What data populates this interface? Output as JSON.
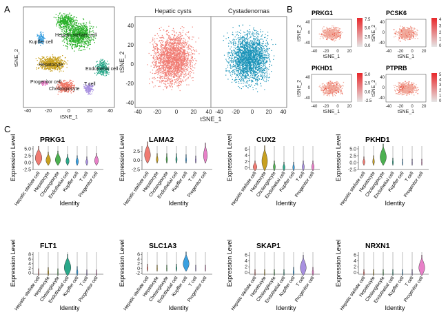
{
  "panels": {
    "a": "A",
    "b": "B",
    "c": "C"
  },
  "tsne_axes": {
    "xlabel": "tSNE_1",
    "ylabel": "tSNE_2",
    "ticks_main": [
      "-40",
      "-20",
      "0",
      "20",
      "40"
    ],
    "ticks_small": [
      "-40",
      "-20",
      "0",
      "20",
      "40"
    ]
  },
  "panel_a": {
    "clusters": [
      {
        "label": "Hepatic stellate cell",
        "color": "#2bb12b"
      },
      {
        "label": "Kupffer cell",
        "color": "#3aa0e0"
      },
      {
        "label": "Hepatocyte",
        "color": "#c8a020"
      },
      {
        "label": "Endothelial cell",
        "color": "#2aa88a"
      },
      {
        "label": "Progenitor cell",
        "color": "#e880c8"
      },
      {
        "label": "Cholangiocyte",
        "color": "#f07868"
      },
      {
        "label": "T cell",
        "color": "#a890e0"
      }
    ],
    "split_titles": [
      "Hepatic cysts",
      "Cystadenomas"
    ],
    "split_colors": [
      "#f07b72",
      "#1a93b8"
    ]
  },
  "panel_b": {
    "genes": [
      {
        "name": "PRKG1",
        "scale": [
          "7.5",
          "5.0",
          "2.5",
          "0.0"
        ]
      },
      {
        "name": "PCSK6",
        "scale": [
          "4",
          "3",
          "2",
          "1",
          "0"
        ]
      },
      {
        "name": "PKHD1",
        "scale": [
          "5.0",
          "2.5",
          "0.0",
          "-2.5"
        ]
      },
      {
        "name": "PTPRB",
        "scale": [
          "5",
          "4",
          "3",
          "2",
          "1",
          "0"
        ]
      }
    ]
  },
  "panel_c": {
    "ylabel": "Expression Level",
    "xlabel": "Identity",
    "categories": [
      "Hepatic stellate cell",
      "Hepatocyte",
      "Cholangiocyte",
      "Endothelial cell",
      "Kupffer cell",
      "T cell",
      "Progenitor cell"
    ],
    "colors": [
      "#f07b72",
      "#c8a020",
      "#4cb050",
      "#2aa88a",
      "#3aa0e0",
      "#a890e0",
      "#e880c8"
    ],
    "genes": [
      {
        "name": "PRKG1",
        "ticks": [
          "5.0",
          "2.5",
          "0.0",
          "-2.5"
        ],
        "ylim": [
          -2.5,
          6
        ],
        "widths": [
          0.95,
          0.65,
          0.75,
          0.45,
          0.35,
          0.3,
          0.55
        ],
        "heights": [
          0.7,
          0.45,
          0.5,
          0.35,
          0.3,
          0.25,
          0.4
        ]
      },
      {
        "name": "LAMA2",
        "ticks": [
          "2.5",
          "0.0",
          "-2.5"
        ],
        "ylim": [
          -2.5,
          4
        ],
        "widths": [
          0.85,
          0.25,
          0.2,
          0.2,
          0.15,
          0.15,
          0.55
        ],
        "heights": [
          0.8,
          0.3,
          0.3,
          0.3,
          0.25,
          0.2,
          0.75
        ]
      },
      {
        "name": "CUX2",
        "ticks": [
          "6",
          "4",
          "2",
          "0"
        ],
        "ylim": [
          -0.5,
          7
        ],
        "widths": [
          0.55,
          0.8,
          0.3,
          0.3,
          0.25,
          0.3,
          0.35
        ],
        "heights": [
          0.3,
          0.95,
          0.3,
          0.25,
          0.25,
          0.3,
          0.3
        ]
      },
      {
        "name": "PKHD1",
        "ticks": [
          "5.0",
          "2.5",
          "0.0",
          "-2.5"
        ],
        "ylim": [
          -2.5,
          6
        ],
        "widths": [
          0.3,
          0.25,
          0.9,
          0.15,
          0.1,
          0.1,
          0.1
        ],
        "heights": [
          0.25,
          0.3,
          0.8,
          0.2,
          0.15,
          0.15,
          0.15
        ]
      },
      {
        "name": "FLT1",
        "ticks": [
          "8",
          "6",
          "4",
          "2",
          "0"
        ],
        "ylim": [
          -0.5,
          9
        ],
        "widths": [
          0.1,
          0.15,
          0.1,
          0.95,
          0.2,
          0.1,
          0.1
        ],
        "heights": [
          0.2,
          0.25,
          0.2,
          0.85,
          0.3,
          0.15,
          0.15
        ]
      },
      {
        "name": "SLC1A3",
        "ticks": [
          "6",
          "4",
          "2",
          "0",
          "-2"
        ],
        "ylim": [
          -2.5,
          7
        ],
        "widths": [
          0.15,
          0.1,
          0.1,
          0.15,
          0.85,
          0.1,
          0.1
        ],
        "heights": [
          0.2,
          0.15,
          0.15,
          0.2,
          0.75,
          0.15,
          0.15
        ]
      },
      {
        "name": "SKAP1",
        "ticks": [
          "6",
          "4",
          "2",
          "0"
        ],
        "ylim": [
          -0.5,
          7
        ],
        "widths": [
          0.1,
          0.1,
          0.1,
          0.1,
          0.15,
          0.85,
          0.2
        ],
        "heights": [
          0.15,
          0.15,
          0.15,
          0.15,
          0.25,
          0.8,
          0.25
        ]
      },
      {
        "name": "NRXN1",
        "ticks": [
          "6",
          "4",
          "2",
          "0"
        ],
        "ylim": [
          -0.5,
          7
        ],
        "widths": [
          0.15,
          0.1,
          0.1,
          0.1,
          0.1,
          0.1,
          0.85
        ],
        "heights": [
          0.15,
          0.15,
          0.15,
          0.15,
          0.15,
          0.15,
          0.8
        ]
      }
    ]
  }
}
